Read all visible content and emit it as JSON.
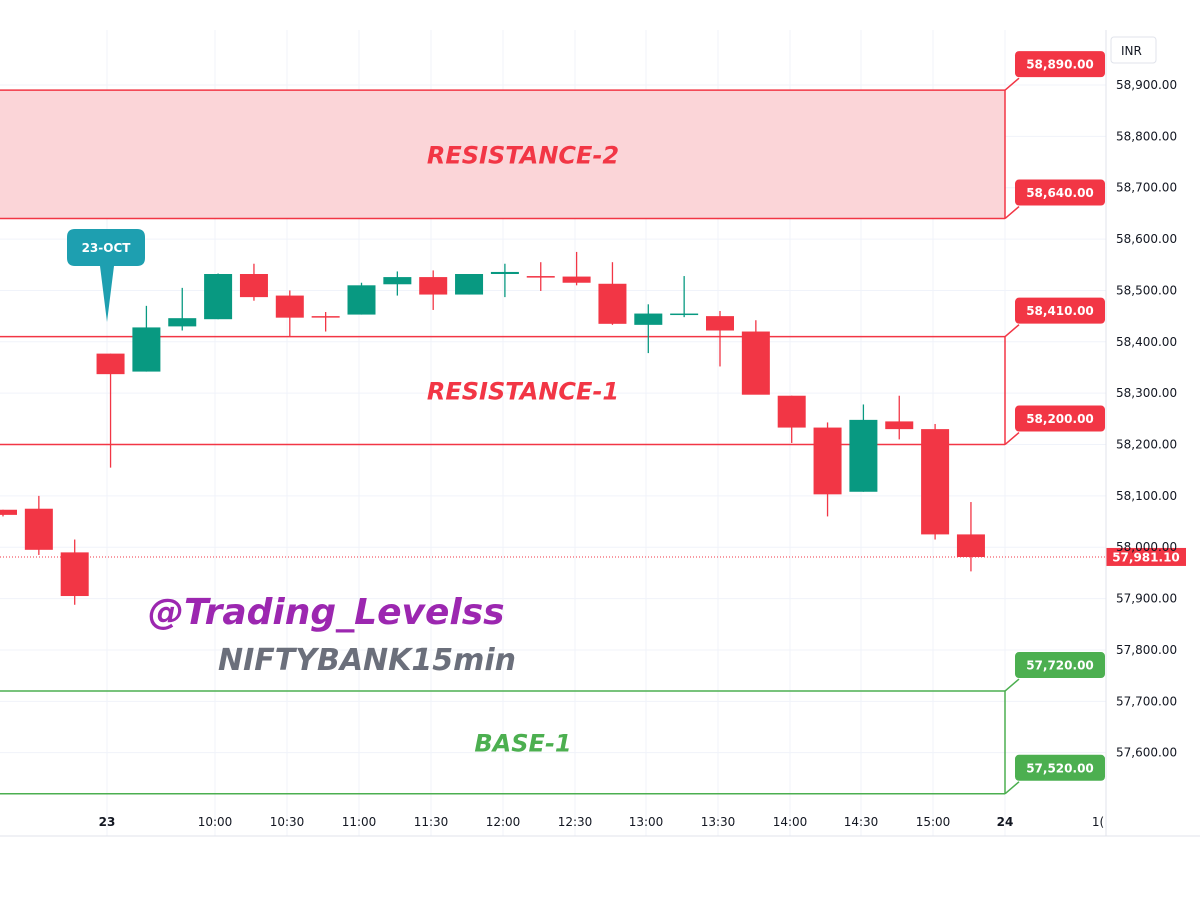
{
  "currency_label": "INR",
  "symbol_label": "NIFTYBANK15min",
  "handle": "@Trading_Levelss",
  "date_callout": "23-OCT",
  "colors": {
    "up": "#089981",
    "down": "#f23645",
    "resistance": "#f23645",
    "resistance_fill": "#fbd5d8",
    "base": "#4caf50",
    "handle": "#9c27b0",
    "symbol": "#6b6f7b",
    "callout": "#1e9fb0"
  },
  "chart_data": {
    "type": "candlestick",
    "y_axis": {
      "ticks": [
        "58,900.00",
        "58,800.00",
        "58,700.00",
        "58,600.00",
        "58,500.00",
        "58,400.00",
        "58,300.00",
        "58,200.00",
        "58,100.00",
        "58,000.00",
        "57,900.00",
        "57,800.00",
        "57,700.00",
        "57,600.00"
      ]
    },
    "x_axis": {
      "labels": [
        "23",
        "10:00",
        "10:30",
        "11:00",
        "11:30",
        "12:00",
        "12:30",
        "13:00",
        "13:30",
        "14:00",
        "14:30",
        "15:00",
        "24",
        "1("
      ]
    },
    "candles": [
      {
        "o": 58073,
        "h": 58073,
        "l": 58060,
        "c": 58063
      },
      {
        "o": 58075,
        "h": 58100,
        "l": 57985,
        "c": 57995
      },
      {
        "o": 57990,
        "h": 58015,
        "l": 57888,
        "c": 57905
      },
      {
        "o": 58377,
        "h": 58377,
        "l": 58155,
        "c": 58337
      },
      {
        "o": 58342,
        "h": 58470,
        "l": 58342,
        "c": 58428
      },
      {
        "o": 58430,
        "h": 58505,
        "l": 58422,
        "c": 58446
      },
      {
        "o": 58444,
        "h": 58533,
        "l": 58444,
        "c": 58532
      },
      {
        "o": 58532,
        "h": 58552,
        "l": 58480,
        "c": 58487
      },
      {
        "o": 58490,
        "h": 58500,
        "l": 58410,
        "c": 58447
      },
      {
        "o": 58450,
        "h": 58458,
        "l": 58420,
        "c": 58448
      },
      {
        "o": 58453,
        "h": 58515,
        "l": 58453,
        "c": 58510
      },
      {
        "o": 58512,
        "h": 58537,
        "l": 58490,
        "c": 58526
      },
      {
        "o": 58526,
        "h": 58539,
        "l": 58462,
        "c": 58492
      },
      {
        "o": 58492,
        "h": 58530,
        "l": 58492,
        "c": 58532
      },
      {
        "o": 58532,
        "h": 58552,
        "l": 58487,
        "c": 58536
      },
      {
        "o": 58528,
        "h": 58555,
        "l": 58499,
        "c": 58525
      },
      {
        "o": 58527,
        "h": 58575,
        "l": 58510,
        "c": 58515
      },
      {
        "o": 58513,
        "h": 58555,
        "l": 58433,
        "c": 58435
      },
      {
        "o": 58433,
        "h": 58473,
        "l": 58378,
        "c": 58455
      },
      {
        "o": 58455,
        "h": 58528,
        "l": 58448,
        "c": 58455
      },
      {
        "o": 58450,
        "h": 58460,
        "l": 58352,
        "c": 58422
      },
      {
        "o": 58420,
        "h": 58442,
        "l": 58298,
        "c": 58297
      },
      {
        "o": 58295,
        "h": 58295,
        "l": 58203,
        "c": 58233
      },
      {
        "o": 58233,
        "h": 58243,
        "l": 58060,
        "c": 58103
      },
      {
        "o": 58108,
        "h": 58278,
        "l": 58108,
        "c": 58248
      },
      {
        "o": 58245,
        "h": 58295,
        "l": 58210,
        "c": 58230
      },
      {
        "o": 58230,
        "h": 58240,
        "l": 58015,
        "c": 58025
      },
      {
        "o": 58025,
        "h": 58088,
        "l": 57953,
        "c": 57981
      }
    ],
    "current_price": {
      "value": 57981.1,
      "label": "57,981.10"
    },
    "levels": [
      {
        "value": 58890,
        "label": "58,890.00",
        "kind": "resistance"
      },
      {
        "value": 58640,
        "label": "58,640.00",
        "kind": "resistance"
      },
      {
        "value": 58410,
        "label": "58,410.00",
        "kind": "resistance"
      },
      {
        "value": 58200,
        "label": "58,200.00",
        "kind": "resistance"
      },
      {
        "value": 57720,
        "label": "57,720.00",
        "kind": "base"
      },
      {
        "value": 57520,
        "label": "57,520.00",
        "kind": "base"
      }
    ],
    "zones": [
      {
        "name": "RESISTANCE-2",
        "from": 58640,
        "to": 58890,
        "kind": "resistance",
        "filled": true
      },
      {
        "name": "RESISTANCE-1",
        "from": 58200,
        "to": 58410,
        "kind": "resistance",
        "filled": false
      },
      {
        "name": "BASE-1",
        "from": 57520,
        "to": 57720,
        "kind": "base",
        "filled": false
      }
    ]
  }
}
